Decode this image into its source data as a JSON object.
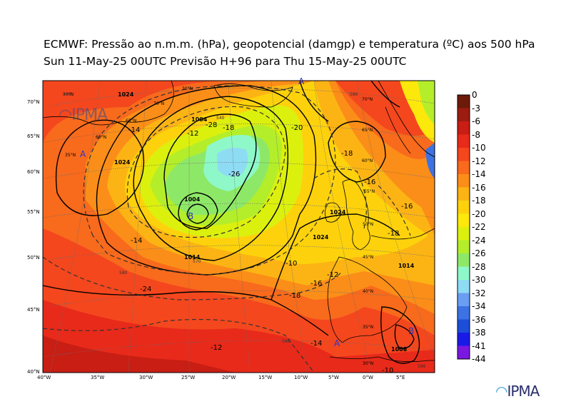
{
  "header": {
    "title_line1": "ECMWF:  Pressão ao n.m.m. (hPa), geopotencial (damgp) e temperatura (ºC) aos 500 hPa",
    "title_line2": "Sun 11-May-25 00UTC Previsão H+96 para Thu 15-May-25 00UTC"
  },
  "colorbar": {
    "labels": [
      "0",
      "-3",
      "-6",
      "-8",
      "-10",
      "-12",
      "-14",
      "-16",
      "-18",
      "-20",
      "-22",
      "-24",
      "-26",
      "-28",
      "-30",
      "-32",
      "-34",
      "-36",
      "-38",
      "-41",
      "-44"
    ],
    "colors": [
      "#6e1a0a",
      "#9c1c10",
      "#c81e14",
      "#e82a1a",
      "#f4471e",
      "#f86a1c",
      "#fb8e18",
      "#fcb414",
      "#fdd20c",
      "#fde80c",
      "#dcf00e",
      "#b4ee2a",
      "#8ee868",
      "#8ef8c8",
      "#8edcf4",
      "#6a9ef2",
      "#3c72e4",
      "#1c4ed8",
      "#1a1ae8",
      "#7a18e0",
      "#e018f0"
    ]
  },
  "axes": {
    "lat_labels": [
      "70°N",
      "65°N",
      "60°N",
      "55°N",
      "50°N",
      "45°N",
      "40°N"
    ],
    "lon_labels": [
      "40°W",
      "35°W",
      "30°W",
      "25°W",
      "20°W",
      "15°W",
      "10°W",
      "5°W",
      "0°W",
      "5°E"
    ]
  },
  "map_labels": {
    "lat_inner": [
      "70°N",
      "65°N",
      "60°N",
      "55°N",
      "50°N",
      "45°N",
      "40°N",
      "35°N",
      "30°N",
      "55°N",
      "50°N",
      "45°N",
      "40°N",
      "35°N"
    ],
    "pressure_centers": [
      "B",
      "A",
      "A",
      "A",
      "B"
    ],
    "contours": [
      "1004",
      "1004",
      "1024",
      "1024",
      "1024",
      "1014",
      "1008",
      "1014",
      "1024",
      "-20",
      "-18",
      "-16",
      "-18",
      "-16",
      "-14",
      "-12",
      "-10",
      "-12",
      "-16",
      "-18",
      "-14",
      "-18",
      "-26",
      "-28",
      "-24",
      "-14",
      "-12",
      "-10",
      "-10",
      "-12",
      "-18",
      "-16",
      "540",
      "570",
      "586",
      "586",
      "580",
      "586",
      "586",
      "586",
      "586"
    ]
  },
  "branding": {
    "logo_text": "IPMA"
  }
}
